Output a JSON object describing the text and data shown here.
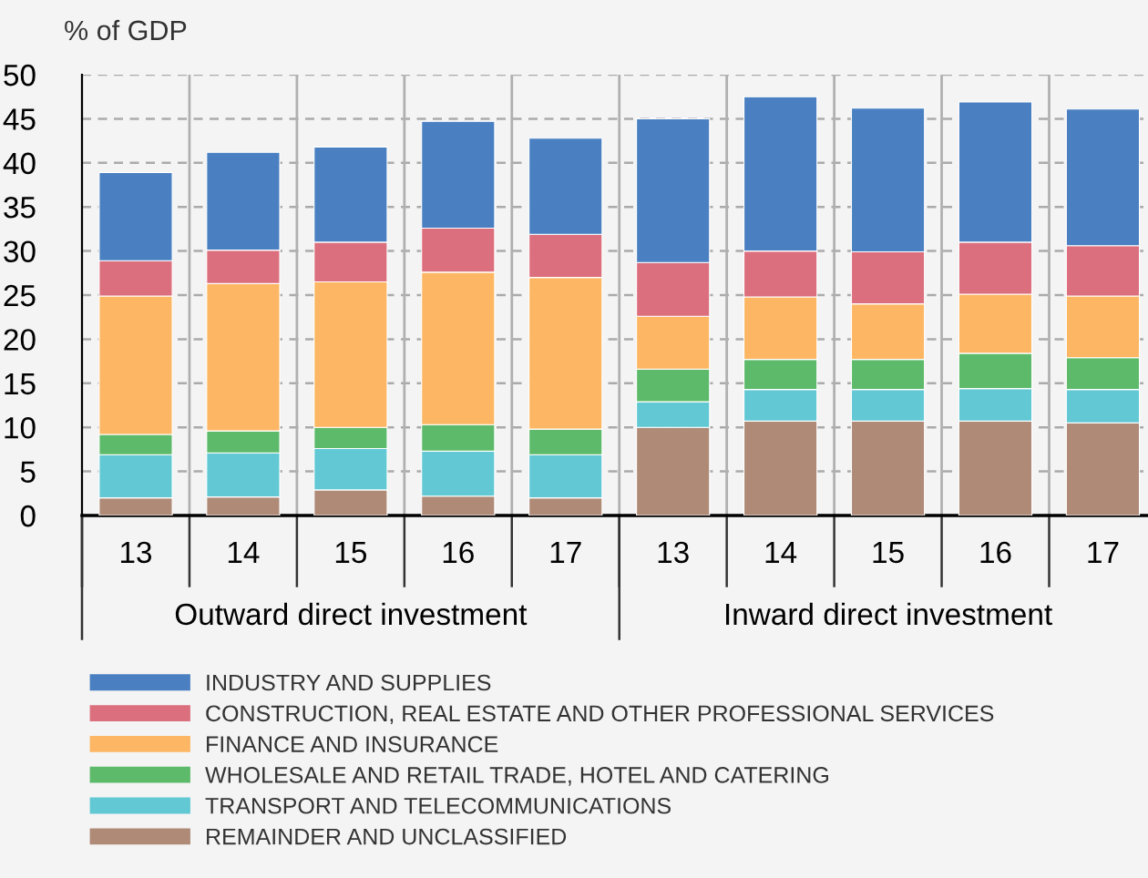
{
  "chart_data": {
    "type": "bar",
    "stacked": true,
    "ylabel": "% of GDP",
    "categories": [
      "13",
      "14",
      "15",
      "16",
      "17",
      "13",
      "14",
      "15",
      "16",
      "17"
    ],
    "annotations": [
      "Outward direct investment",
      "Inward direct investment"
    ],
    "ylim": [
      0,
      50
    ],
    "yticks": [
      0,
      5,
      10,
      15,
      20,
      25,
      30,
      35,
      40,
      45,
      50
    ],
    "grid": true,
    "legend": "bottom",
    "series": [
      {
        "name": "REMAINDER AND UNCLASSIFIED",
        "color": "#ae8a77",
        "values": [
          2.0,
          2.1,
          2.9,
          2.2,
          2.0,
          10.0,
          10.7,
          10.7,
          10.7,
          10.5
        ]
      },
      {
        "name": "TRANSPORT AND TELECOMMUNICATIONS",
        "color": "#62c8d4",
        "values": [
          4.9,
          5.0,
          4.7,
          5.1,
          4.9,
          2.9,
          3.6,
          3.6,
          3.7,
          3.8
        ]
      },
      {
        "name": "WHOLESALE AND RETAIL TRADE, HOTEL AND CATERING",
        "color": "#5dba6a",
        "values": [
          2.3,
          2.5,
          2.4,
          3.0,
          2.9,
          3.7,
          3.4,
          3.4,
          4.0,
          3.6
        ]
      },
      {
        "name": "FINANCE AND INSURANCE",
        "color": "#fdb764",
        "values": [
          15.7,
          16.7,
          16.5,
          17.3,
          17.2,
          6.0,
          7.1,
          6.3,
          6.7,
          7.0
        ]
      },
      {
        "name": "CONSTRUCTION, REAL ESTATE AND OTHER PROFESSIONAL SERVICES",
        "color": "#dc6f7e",
        "values": [
          4.0,
          3.8,
          4.5,
          5.0,
          4.9,
          6.1,
          5.2,
          5.9,
          5.9,
          5.7
        ]
      },
      {
        "name": "INDUSTRY AND SUPPLIES",
        "color": "#4a80c1",
        "values": [
          10.0,
          11.1,
          10.8,
          12.1,
          10.9,
          16.3,
          17.5,
          16.3,
          15.9,
          15.5
        ]
      }
    ]
  }
}
